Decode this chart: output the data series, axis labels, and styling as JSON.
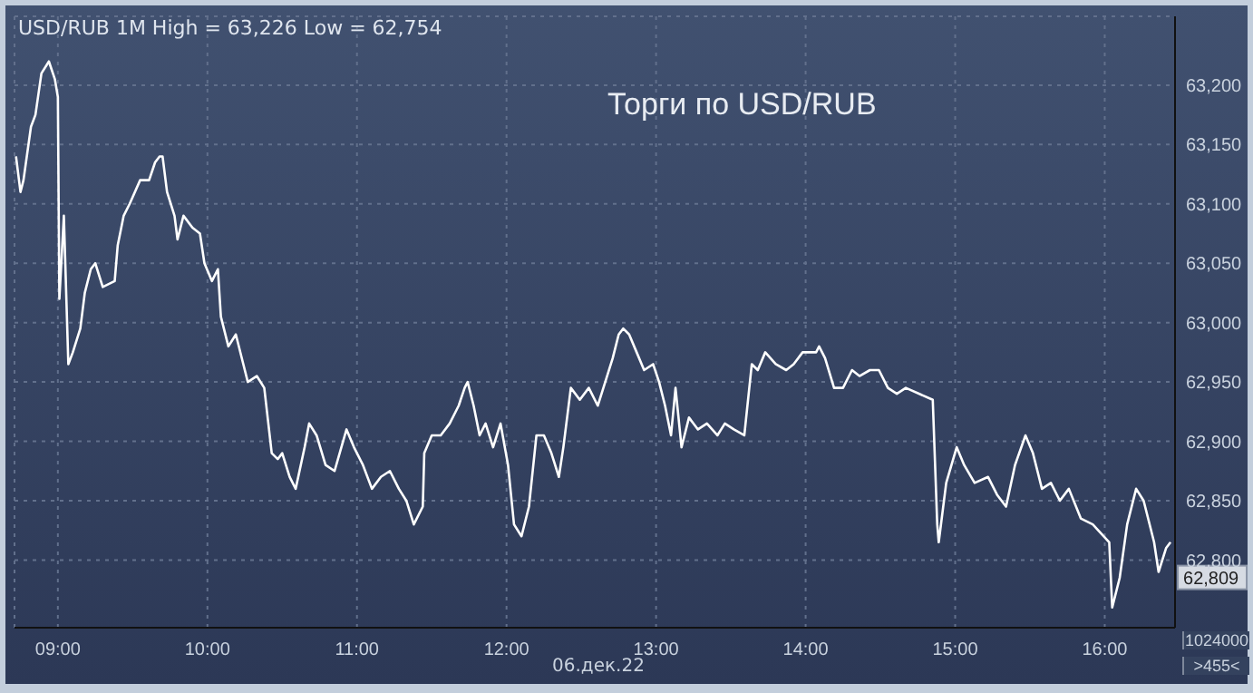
{
  "chart_data": {
    "type": "line",
    "title": "Торги по USD/RUB",
    "subtitle": "USD/RUB 1M High = 63,226 Low = 62,754",
    "xlabel": "06.дек.22",
    "x": [
      8.72,
      8.75,
      8.77,
      8.82,
      8.85,
      8.89,
      8.94,
      8.98,
      9.0,
      9.01,
      9.04,
      9.07,
      9.1,
      9.15,
      9.18,
      9.22,
      9.25,
      9.3,
      9.38,
      9.4,
      9.44,
      9.48,
      9.55,
      9.61,
      9.65,
      9.68,
      9.7,
      9.73,
      9.78,
      9.8,
      9.84,
      9.9,
      9.95,
      9.98,
      10.03,
      10.07,
      10.09,
      10.14,
      10.19,
      10.24,
      10.27,
      10.33,
      10.38,
      10.43,
      10.47,
      10.5,
      10.55,
      10.59,
      10.65,
      10.68,
      10.73,
      10.79,
      10.85,
      10.93,
      10.98,
      11.04,
      11.1,
      11.16,
      11.22,
      11.28,
      11.33,
      11.38,
      11.44,
      11.45,
      11.5,
      11.56,
      11.62,
      11.68,
      11.72,
      11.74,
      11.78,
      11.82,
      11.86,
      11.91,
      11.96,
      12.01,
      12.05,
      12.1,
      12.15,
      12.2,
      12.25,
      12.3,
      12.35,
      12.38,
      12.43,
      12.49,
      12.55,
      12.61,
      12.66,
      12.71,
      12.75,
      12.78,
      12.82,
      12.87,
      12.92,
      12.98,
      13.02,
      13.06,
      13.1,
      13.13,
      13.17,
      13.22,
      13.28,
      13.34,
      13.41,
      13.46,
      13.52,
      13.59,
      13.64,
      13.68,
      13.73,
      13.8,
      13.87,
      13.92,
      13.98,
      14.07,
      14.09,
      14.13,
      14.19,
      14.25,
      14.31,
      14.36,
      14.43,
      14.49,
      14.55,
      14.61,
      14.67,
      14.85,
      14.88,
      14.89,
      14.94,
      15.01,
      15.06,
      15.13,
      15.22,
      15.28,
      15.34,
      15.4,
      15.47,
      15.52,
      15.58,
      15.64,
      15.7,
      15.76,
      15.84,
      15.92,
      16.03,
      16.05,
      16.1,
      16.15,
      16.21,
      16.26,
      16.33,
      16.36,
      16.41,
      16.44
    ],
    "values": [
      63140,
      63110,
      63120,
      63165,
      63175,
      63210,
      63220,
      63205,
      63190,
      63020,
      63090,
      62965,
      62975,
      62995,
      63025,
      63045,
      63050,
      63030,
      63035,
      63065,
      63090,
      63100,
      63120,
      63120,
      63135,
      63140,
      63140,
      63110,
      63090,
      63070,
      63090,
      63080,
      63075,
      63050,
      63035,
      63045,
      63005,
      62980,
      62990,
      62965,
      62950,
      62955,
      62945,
      62890,
      62885,
      62890,
      62870,
      62860,
      62895,
      62915,
      62905,
      62880,
      62875,
      62910,
      62895,
      62880,
      62860,
      62870,
      62875,
      62860,
      62850,
      62830,
      62845,
      62890,
      62905,
      62905,
      62915,
      62930,
      62945,
      62950,
      62930,
      62905,
      62915,
      62895,
      62915,
      62880,
      62830,
      62820,
      62845,
      62905,
      62905,
      62890,
      62870,
      62895,
      62945,
      62935,
      62945,
      62930,
      62950,
      62970,
      62990,
      62995,
      62990,
      62975,
      62960,
      62965,
      62950,
      62930,
      62905,
      62945,
      62895,
      62920,
      62910,
      62915,
      62905,
      62915,
      62910,
      62905,
      62965,
      62960,
      62975,
      62965,
      62960,
      62965,
      62975,
      62975,
      62980,
      62970,
      62945,
      62945,
      62960,
      62955,
      62960,
      62960,
      62945,
      62940,
      62945,
      62935,
      62830,
      62815,
      62865,
      62895,
      62880,
      62865,
      62870,
      62855,
      62845,
      62880,
      62905,
      62890,
      62860,
      62865,
      62850,
      62860,
      62835,
      62830,
      62815,
      62760,
      62785,
      62830,
      62860,
      62850,
      62815,
      62790,
      62810,
      62815
    ],
    "color": "#ffffff",
    "xlim": [
      8.71,
      16.47
    ],
    "xticks": [
      {
        "value": 9,
        "label": "09:00"
      },
      {
        "value": 10,
        "label": "10:00"
      },
      {
        "value": 11,
        "label": "11:00"
      },
      {
        "value": 12,
        "label": "12:00"
      },
      {
        "value": 13,
        "label": "13:00"
      },
      {
        "value": 14,
        "label": "14:00"
      },
      {
        "value": 15,
        "label": "15:00"
      },
      {
        "value": 16,
        "label": "16:00"
      }
    ],
    "ylim": [
      62743,
      63258
    ],
    "yticks": [
      {
        "value": 62800,
        "label": "62,800"
      },
      {
        "value": 62850,
        "label": "62,850"
      },
      {
        "value": 62900,
        "label": "62,900"
      },
      {
        "value": 62950,
        "label": "62,950"
      },
      {
        "value": 63000,
        "label": "63,000"
      },
      {
        "value": 63050,
        "label": "63,050"
      },
      {
        "value": 63100,
        "label": "63,100"
      },
      {
        "value": 63150,
        "label": "63,150"
      },
      {
        "value": 63200,
        "label": "63,200"
      }
    ],
    "grid": true,
    "marker": "none",
    "line_style": "solid",
    "annotations": [
      {
        "text": "62,809",
        "x": 16.44,
        "y": 62809
      },
      "1024000",
      ">455<"
    ]
  }
}
